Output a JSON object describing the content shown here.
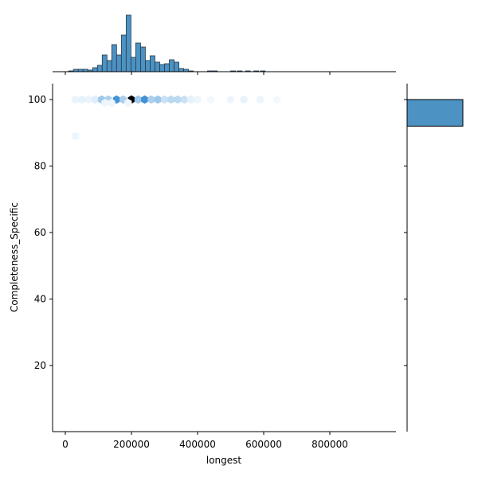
{
  "chart_data": {
    "type": "hexbin-jointplot",
    "title": "",
    "xlabel": "longest",
    "ylabel": "Completeness_Specific",
    "xlim": [
      -40000,
      990000
    ],
    "ylim": [
      1,
      105
    ],
    "x_ticks": [
      0,
      200000,
      400000,
      600000,
      800000
    ],
    "x_tick_labels": [
      "0",
      "200000",
      "400000",
      "600000",
      "800000"
    ],
    "y_ticks": [
      20,
      40,
      60,
      80,
      100
    ],
    "y_tick_labels": [
      "20",
      "40",
      "60",
      "80",
      "100"
    ],
    "grid": false,
    "legend": null,
    "color": "#4c92c3",
    "marginal_x_histogram": {
      "bin_width": 14500,
      "bins_start": [
        10000,
        24500,
        39000,
        53500,
        68000,
        82500,
        97000,
        111500,
        126000,
        140500,
        155000,
        169500,
        184000,
        198500,
        213000,
        227500,
        242000,
        256500,
        271000,
        285500,
        300000,
        314500,
        329000,
        343500,
        358000,
        372500,
        387000,
        430000,
        445000,
        500000,
        520000,
        545000,
        570000,
        590000
      ],
      "counts": [
        1,
        3,
        3,
        3,
        2,
        5,
        8,
        21,
        14,
        34,
        21,
        46,
        71,
        18,
        36,
        31,
        14,
        20,
        12,
        9,
        10,
        15,
        12,
        4,
        3,
        1,
        0,
        1,
        1,
        1,
        1,
        1,
        1,
        1
      ]
    },
    "marginal_y_histogram": {
      "bins": [
        [
          92,
          100
        ]
      ],
      "counts": [
        440
      ]
    },
    "hexbins": [
      {
        "x": 30000,
        "y": 100,
        "density": 0.04
      },
      {
        "x": 50000,
        "y": 100,
        "density": 0.06
      },
      {
        "x": 70000,
        "y": 100,
        "density": 0.04
      },
      {
        "x": 90000,
        "y": 100,
        "density": 0.08
      },
      {
        "x": 110000,
        "y": 100,
        "density": 0.3
      },
      {
        "x": 130000,
        "y": 100,
        "density": 0.25
      },
      {
        "x": 155000,
        "y": 100,
        "density": 0.6
      },
      {
        "x": 175000,
        "y": 100,
        "density": 0.25
      },
      {
        "x": 200000,
        "y": 100,
        "density": 1.0
      },
      {
        "x": 220000,
        "y": 100,
        "density": 0.3
      },
      {
        "x": 240000,
        "y": 100,
        "density": 0.6
      },
      {
        "x": 260000,
        "y": 100,
        "density": 0.25
      },
      {
        "x": 280000,
        "y": 100,
        "density": 0.3
      },
      {
        "x": 300000,
        "y": 100,
        "density": 0.15
      },
      {
        "x": 320000,
        "y": 100,
        "density": 0.2
      },
      {
        "x": 340000,
        "y": 100,
        "density": 0.2
      },
      {
        "x": 360000,
        "y": 100,
        "density": 0.15
      },
      {
        "x": 380000,
        "y": 100,
        "density": 0.06
      },
      {
        "x": 400000,
        "y": 100,
        "density": 0.03
      },
      {
        "x": 440000,
        "y": 100,
        "density": 0.02
      },
      {
        "x": 500000,
        "y": 100,
        "density": 0.03
      },
      {
        "x": 540000,
        "y": 100,
        "density": 0.05
      },
      {
        "x": 590000,
        "y": 100,
        "density": 0.03
      },
      {
        "x": 640000,
        "y": 100,
        "density": 0.02
      },
      {
        "x": 120000,
        "y": 99,
        "density": 0.03
      },
      {
        "x": 140000,
        "y": 99,
        "density": 0.03
      },
      {
        "x": 190000,
        "y": 99,
        "density": 0.03
      },
      {
        "x": 30000,
        "y": 89,
        "density": 0.03
      }
    ]
  }
}
